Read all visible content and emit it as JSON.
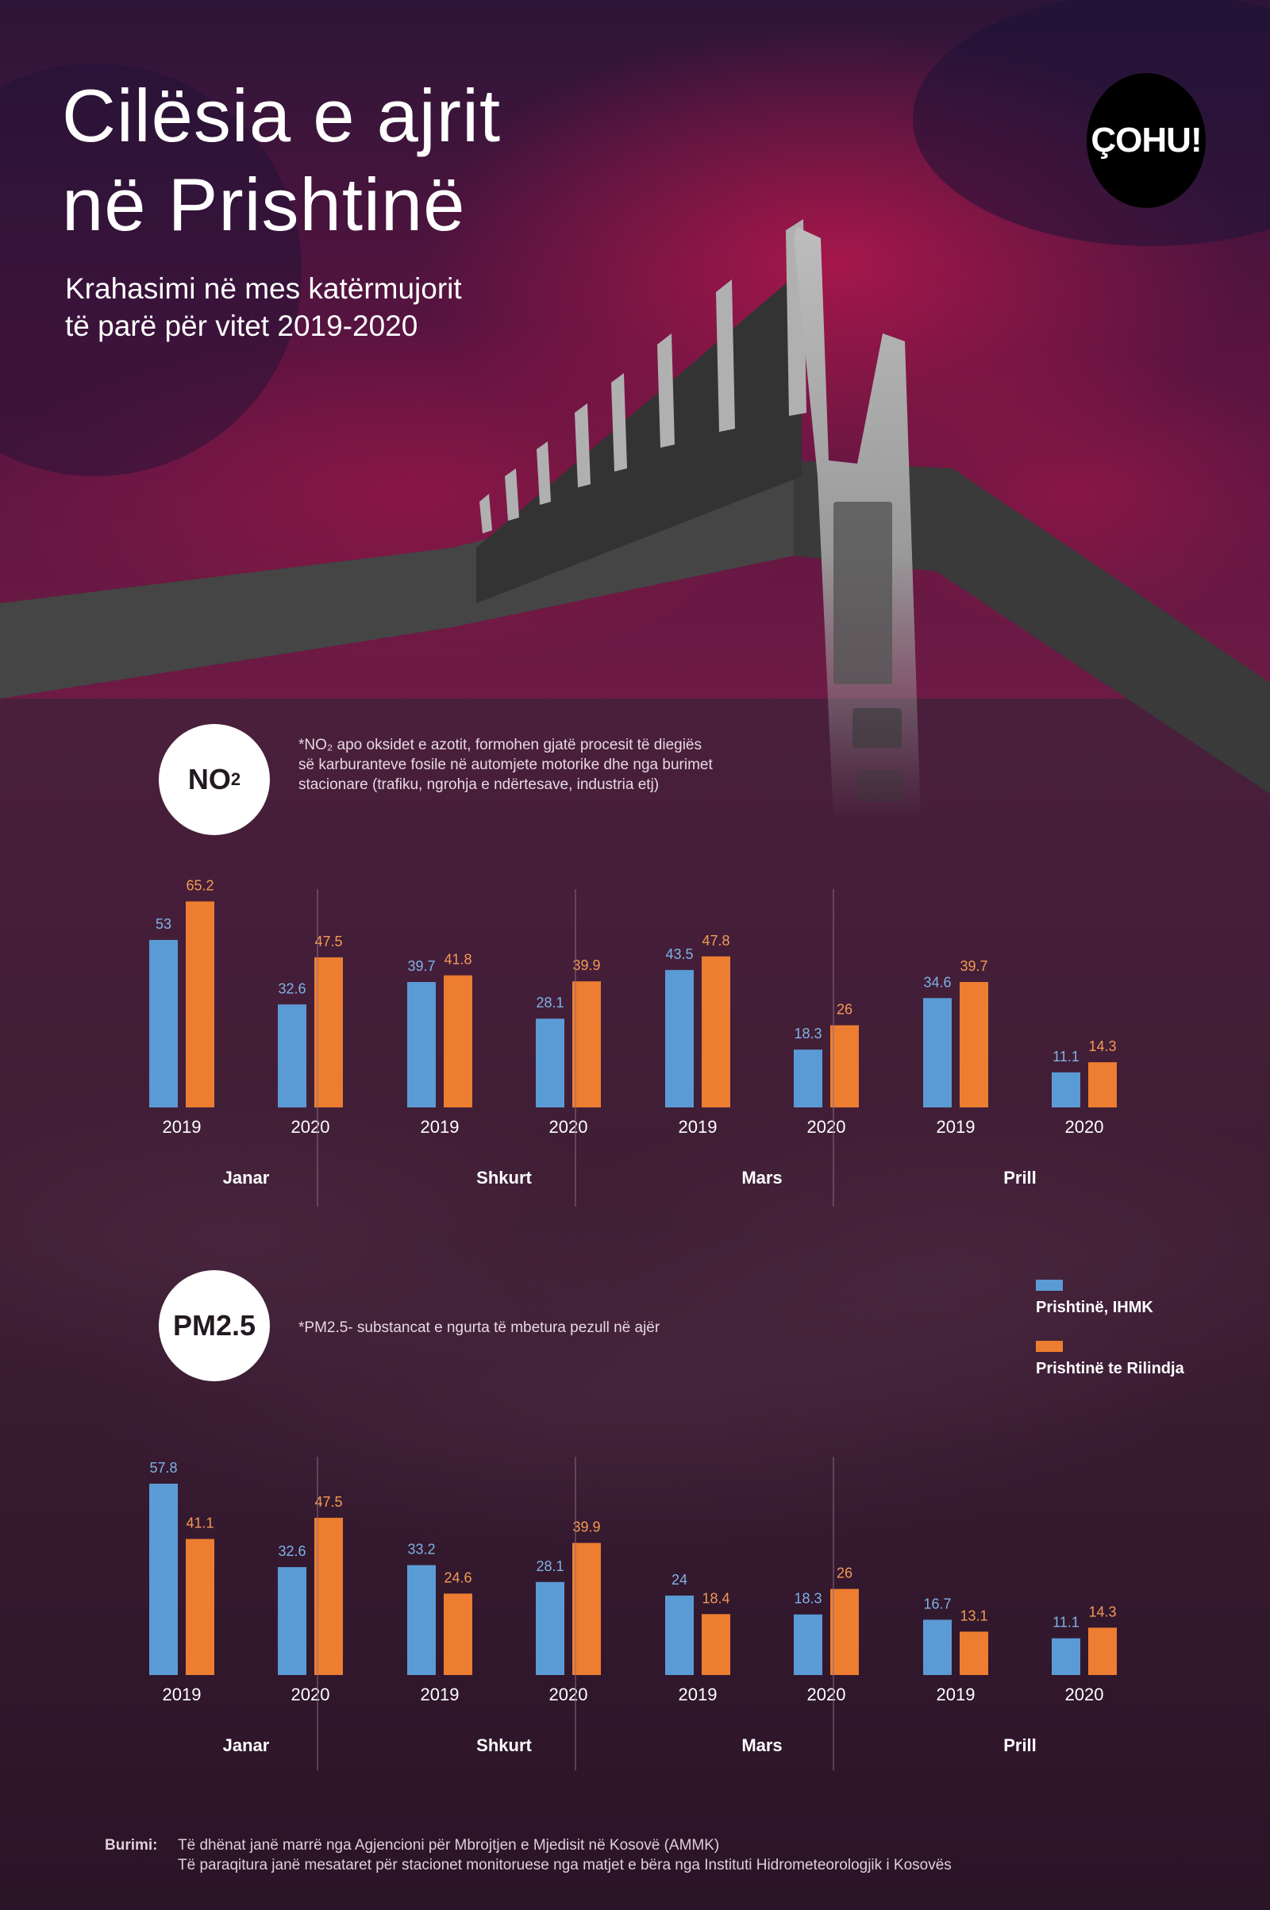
{
  "header": {
    "title_line1": "Cilësia e ajrit",
    "title_line2": "në Prishtinë",
    "subtitle_line1": "Krahasimi në mes katërmujorit",
    "subtitle_line2": "të parë për vitet 2019-2020",
    "logo": "ÇOHU!"
  },
  "colors": {
    "series_ihmk": "#5b9bd5",
    "series_rilindja": "#ed7d31"
  },
  "no2": {
    "badge_main": "NO",
    "badge_sub": "2",
    "note_line1": "*NO₂ apo oksidet e azotit, formohen gjatë procesit të diegiës",
    "note_line2": "së karburanteve fosile në automjete motorike dhe nga burimet",
    "note_line3": "stacionare (trafiku, ngrohja e ndërtesave, industria etj)"
  },
  "pm25": {
    "badge": "PM2.5",
    "note": "*PM2.5-  substancat e ngurta të mbetura pezull në ajër"
  },
  "legend": {
    "item1": "Prishtinë, IHMK",
    "item2": "Prishtinë te Rilindja"
  },
  "source": {
    "label": "Burimi:",
    "line1": "Të dhënat janë marrë nga Agjencioni për Mbrojtjen e Mjedisit në Kosovë (AMMK)",
    "line2": "Të paraqitura janë mesataret për stacionet monitoruese nga matjet e bëra nga Instituti Hidrometeorologjik i Kosovës"
  },
  "chart_data": [
    {
      "type": "bar",
      "months": [
        "Janar",
        "Shkurt",
        "Mars",
        "Prill"
      ],
      "years": [
        "2019",
        "2020"
      ],
      "series": [
        {
          "name": "Prishtinë, IHMK",
          "values": [
            [
              53,
              32.6
            ],
            [
              39.7,
              28.1
            ],
            [
              43.5,
              18.3
            ],
            [
              34.6,
              11.1
            ]
          ]
        },
        {
          "name": "Prishtinë te Rilindja",
          "values": [
            [
              65.2,
              47.5
            ],
            [
              41.8,
              39.9
            ],
            [
              47.8,
              26
            ],
            [
              39.7,
              14.3
            ]
          ]
        }
      ],
      "labels": [
        [
          [
            "53",
            "65.2"
          ],
          [
            "32.6",
            "47.5"
          ]
        ],
        [
          [
            "39.7",
            "41.8"
          ],
          [
            "28.1",
            "39.9"
          ]
        ],
        [
          [
            "43.5",
            "47.8"
          ],
          [
            "18.3",
            "26"
          ]
        ],
        [
          [
            "34.6",
            "39.7"
          ],
          [
            "11.1",
            "14.3"
          ]
        ]
      ]
    },
    {
      "type": "bar",
      "months": [
        "Janar",
        "Shkurt",
        "Mars",
        "Prill"
      ],
      "years": [
        "2019",
        "2020"
      ],
      "series": [
        {
          "name": "Prishtinë, IHMK",
          "values": [
            [
              57.8,
              32.6
            ],
            [
              33.2,
              28.1
            ],
            [
              24,
              18.3
            ],
            [
              16.7,
              11.1
            ]
          ]
        },
        {
          "name": "Prishtinë te Rilindja",
          "values": [
            [
              41.1,
              47.5
            ],
            [
              24.6,
              39.9
            ],
            [
              18.4,
              26
            ],
            [
              13.1,
              14.3
            ]
          ]
        }
      ],
      "labels": [
        [
          [
            "57.8",
            "41.1"
          ],
          [
            "32.6",
            "47.5"
          ]
        ],
        [
          [
            "33.2",
            "24.6"
          ],
          [
            "28.1",
            "39.9"
          ]
        ],
        [
          [
            "24",
            "18.4"
          ],
          [
            "18.3",
            "26"
          ]
        ],
        [
          [
            "16.7",
            "13.1"
          ],
          [
            "11.1",
            "14.3"
          ]
        ]
      ]
    }
  ]
}
